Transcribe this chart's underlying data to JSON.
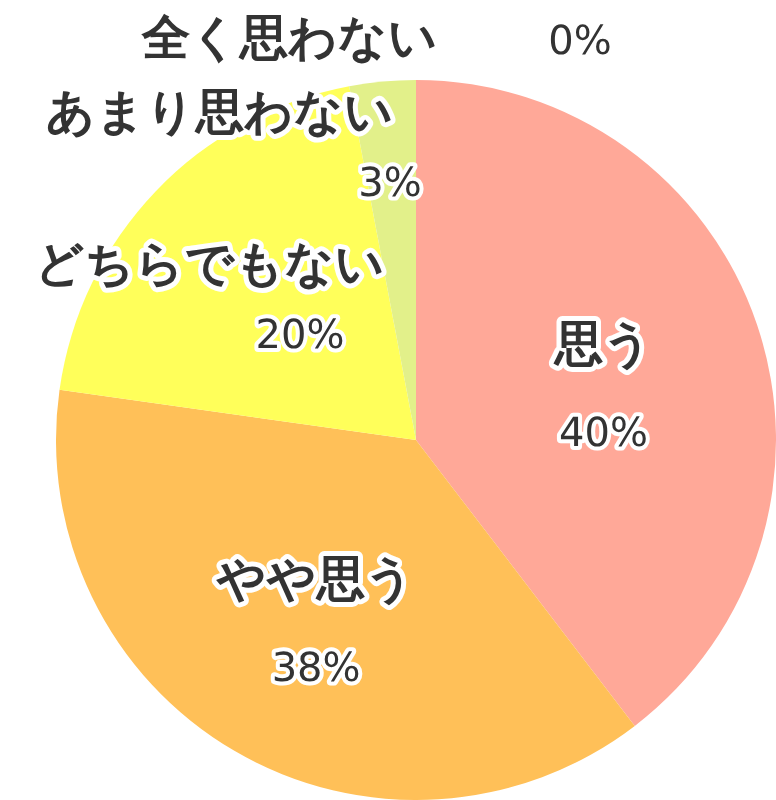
{
  "chart_data": {
    "type": "pie",
    "categories": [
      "思う",
      "やや思う",
      "どちらでもない",
      "あまり思わない",
      "全く思わない"
    ],
    "values": [
      40,
      38,
      20,
      3,
      0
    ],
    "colors": [
      "#ffa898",
      "#ffc058",
      "#ffff5a",
      "#e2f08a",
      "#d8e8a0"
    ],
    "value_labels": [
      "40%",
      "38%",
      "20%",
      "3%",
      "0%"
    ]
  }
}
